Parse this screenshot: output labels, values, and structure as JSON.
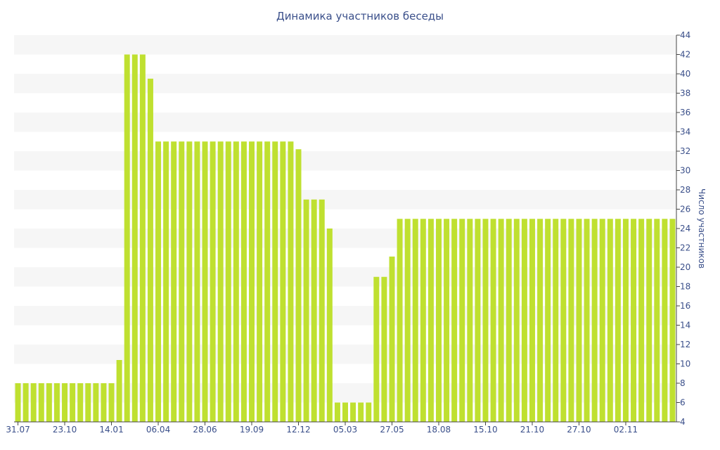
{
  "chart_data": {
    "type": "bar",
    "title": "Динамика участников беседы",
    "xlabel": "",
    "ylabel": "Число участников",
    "ylim": [
      4,
      44
    ],
    "y_ticks": [
      4,
      6,
      8,
      10,
      12,
      14,
      16,
      18,
      20,
      22,
      24,
      26,
      28,
      30,
      32,
      34,
      36,
      38,
      40,
      42,
      44
    ],
    "y_axis_side": "right",
    "x_tick_labels": [
      {
        "index": 0,
        "label": "31.07"
      },
      {
        "index": 6,
        "label": "23.10"
      },
      {
        "index": 12,
        "label": "14.01"
      },
      {
        "index": 18,
        "label": "06.04"
      },
      {
        "index": 24,
        "label": "28.06"
      },
      {
        "index": 30,
        "label": "19.09"
      },
      {
        "index": 36,
        "label": "12.12"
      },
      {
        "index": 42,
        "label": "05.03"
      },
      {
        "index": 48,
        "label": "27.05"
      },
      {
        "index": 54,
        "label": "18.08"
      },
      {
        "index": 60,
        "label": "15.10"
      },
      {
        "index": 66,
        "label": "21.10"
      },
      {
        "index": 72,
        "label": "27.10"
      },
      {
        "index": 78,
        "label": "02.11"
      }
    ],
    "values": [
      8,
      8,
      8,
      8,
      8,
      8,
      8,
      8,
      8,
      8,
      8,
      8,
      8,
      10.4,
      42,
      42,
      42,
      39.5,
      33,
      33,
      33,
      33,
      33,
      33,
      33,
      33,
      33,
      33,
      33,
      33,
      33,
      33,
      33,
      33,
      33,
      33,
      32.2,
      27,
      27,
      27,
      24,
      6,
      6,
      6,
      6,
      6,
      19,
      19,
      21.1,
      25,
      25,
      25,
      25,
      25,
      25,
      25,
      25,
      25,
      25,
      25,
      25,
      25,
      25,
      25,
      25,
      25,
      25,
      25,
      25,
      25,
      25,
      25,
      25,
      25,
      25,
      25,
      25,
      25,
      25,
      25,
      25,
      25,
      25,
      25,
      25
    ],
    "grid": "horizontal bands",
    "colors": {
      "bar": "#bfe030",
      "band": "#f6f6f6",
      "text": "#3a4f8a",
      "axis": "#444444"
    }
  }
}
